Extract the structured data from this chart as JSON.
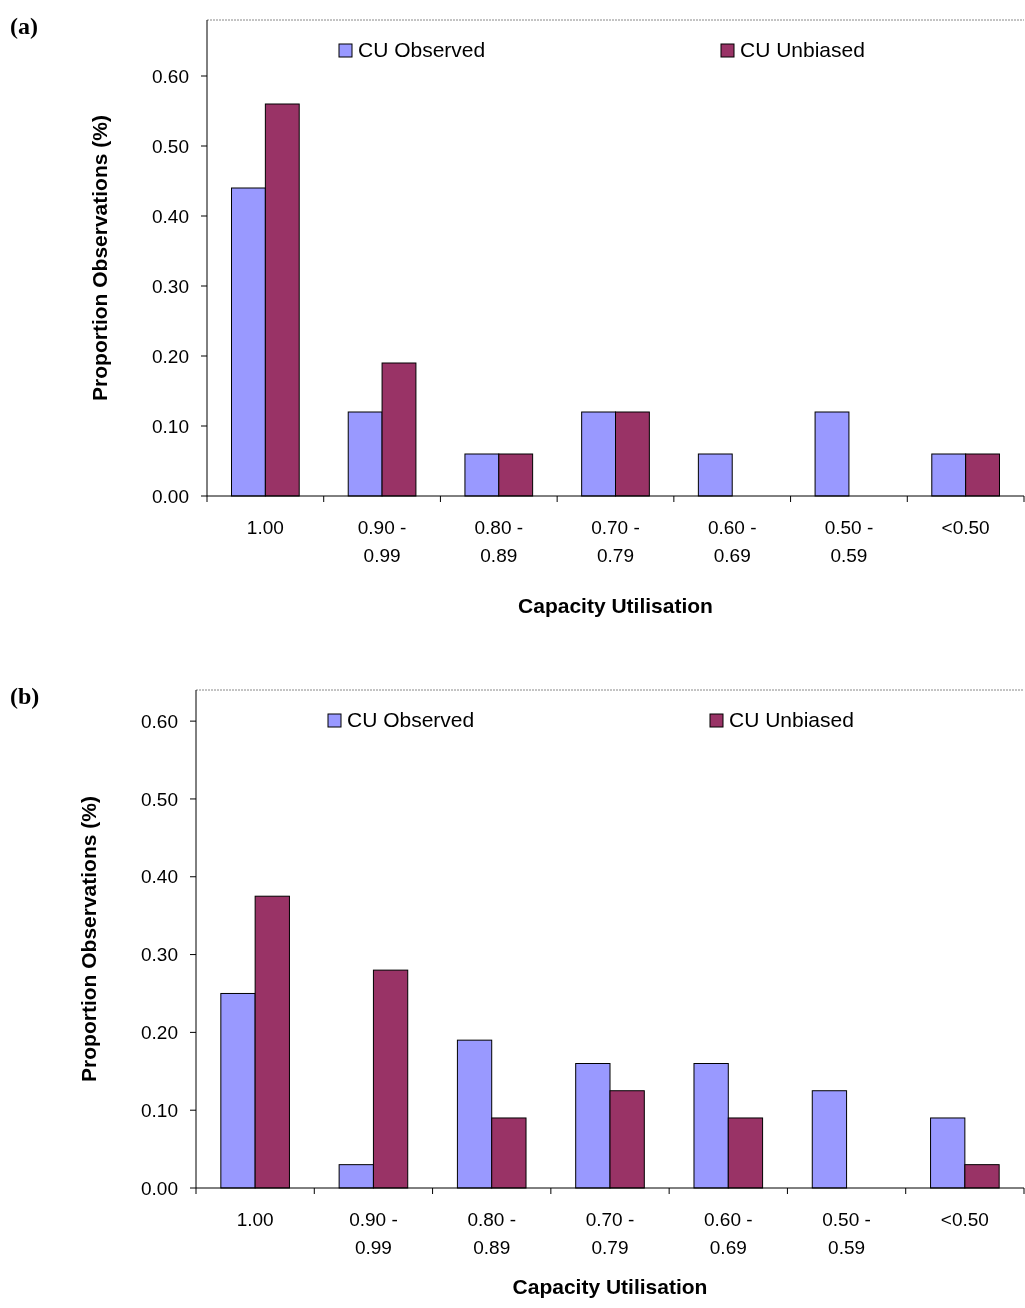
{
  "chart_data": [
    {
      "type": "bar",
      "annotations": [
        "(a)"
      ],
      "xlabel": "Capacity Utilisation",
      "ylabel": "Proportion Observations (%)",
      "categories": [
        "1.00",
        "0.90 - 0.99",
        "0.80 - 0.89",
        "0.70 - 0.79",
        "0.60 - 0.69",
        "0.50 - 0.59",
        "<0.50"
      ],
      "series": [
        {
          "name": "CU Observed",
          "color": "#9999ff",
          "values": [
            0.44,
            0.12,
            0.06,
            0.12,
            0.06,
            0.12,
            0.06
          ]
        },
        {
          "name": "CU Unbiased",
          "color": "#993366",
          "values": [
            0.56,
            0.19,
            0.06,
            0.12,
            0,
            0,
            0.06
          ]
        }
      ],
      "ylim": [
        0,
        0.68
      ],
      "yticks": [
        {
          "value": 0,
          "label": "0.00"
        },
        {
          "value": 0.1,
          "label": "0.10"
        },
        {
          "value": 0.2,
          "label": "0.20"
        },
        {
          "value": 0.3,
          "label": "0.30"
        },
        {
          "value": 0.4,
          "label": "0.40"
        },
        {
          "value": 0.5,
          "label": "0.50"
        },
        {
          "value": 0.6,
          "label": "0.60"
        }
      ],
      "grid": false,
      "legend": "top"
    },
    {
      "type": "bar",
      "annotations": [
        "(b)"
      ],
      "xlabel": "Capacity Utilisation",
      "ylabel": "Proportion Observations (%)",
      "categories": [
        "1.00",
        "0.90 - 0.99",
        "0.80 - 0.89",
        "0.70 - 0.79",
        "0.60 - 0.69",
        "0.50 - 0.59",
        "<0.50"
      ],
      "series": [
        {
          "name": "CU Observed",
          "color": "#9999ff",
          "values": [
            0.25,
            0.03,
            0.19,
            0.16,
            0.16,
            0.125,
            0.09
          ]
        },
        {
          "name": "CU Unbiased",
          "color": "#993366",
          "values": [
            0.375,
            0.28,
            0.09,
            0.125,
            0.09,
            0,
            0.03
          ]
        }
      ],
      "ylim": [
        0,
        0.64
      ],
      "yticks": [
        {
          "value": 0,
          "label": "0.00"
        },
        {
          "value": 0.1,
          "label": "0.10"
        },
        {
          "value": 0.2,
          "label": "0.20"
        },
        {
          "value": 0.3,
          "label": "0.30"
        },
        {
          "value": 0.4,
          "label": "0.40"
        },
        {
          "value": 0.5,
          "label": "0.50"
        },
        {
          "value": 0.6,
          "label": "0.60"
        }
      ],
      "grid": false,
      "legend": "top"
    }
  ]
}
